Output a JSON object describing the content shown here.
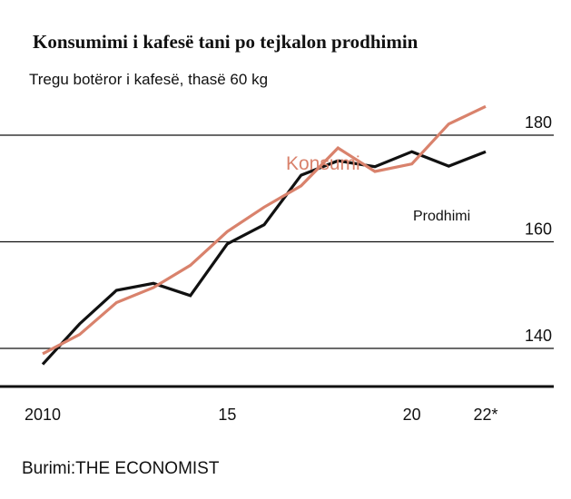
{
  "title": "Konsumimi i kafesë tani po tejkalon prodhimin",
  "subtitle": "Tregu botëror i kafesë, thasë 60 kg",
  "source": {
    "label": "Burimi:",
    "name": "THE ECONOMIST"
  },
  "colors": {
    "consumption": "#d9826c",
    "production": "#111111",
    "grid": "#111111"
  },
  "chart_data": {
    "type": "line",
    "x": [
      2010,
      2011,
      2012,
      2013,
      2014,
      2015,
      2016,
      2017,
      2018,
      2019,
      2020,
      2021,
      2022
    ],
    "series": [
      {
        "name": "Konsumi",
        "values": [
          139.0,
          142.6,
          148.6,
          151.4,
          155.6,
          161.9,
          166.5,
          170.5,
          177.6,
          173.2,
          174.6,
          182.1,
          185.4
        ]
      },
      {
        "name": "Prodhimi",
        "values": [
          137.0,
          144.6,
          150.9,
          152.2,
          149.9,
          159.6,
          163.2,
          172.5,
          175.2,
          174.1,
          176.9,
          174.2,
          176.9
        ]
      }
    ],
    "xticks": [
      "2010",
      "15",
      "20",
      "22*"
    ],
    "xtick_values": [
      2010,
      2015,
      2020,
      2022
    ],
    "yticks": [
      "140",
      "160",
      "180"
    ],
    "ytick_values": [
      140,
      160,
      180
    ],
    "xlim": [
      2010,
      2022
    ],
    "ylim": [
      133,
      190
    ],
    "grid": true,
    "grid_axis": "y",
    "legend": "direct labels on lines"
  }
}
